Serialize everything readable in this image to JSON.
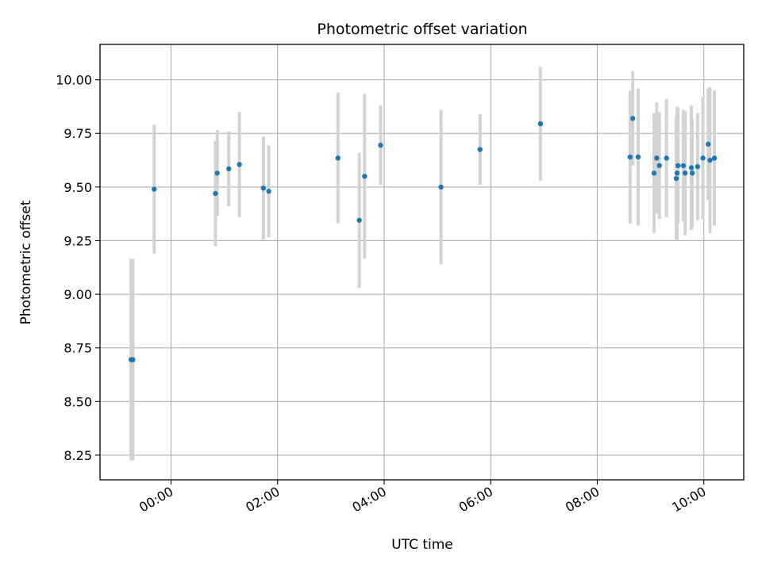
{
  "chart_data": {
    "type": "scatter",
    "title": "Photometric offset variation",
    "xlabel": "UTC time",
    "ylabel": "Photometric offset",
    "x_unit": "UTC time (HH:MM)",
    "xlim": [
      "-01:20",
      "10:45"
    ],
    "ylim": [
      8.135,
      10.165
    ],
    "grid": true,
    "x_tick_labels": [
      "00:00",
      "02:00",
      "04:00",
      "06:00",
      "08:00",
      "10:00"
    ],
    "y_ticks": [
      8.25,
      8.5,
      8.75,
      9.0,
      9.25,
      9.5,
      9.75,
      10.0
    ],
    "y_tick_labels": [
      "8.25",
      "8.50",
      "8.75",
      "9.00",
      "9.25",
      "9.50",
      "9.75",
      "10.00"
    ],
    "series": [
      {
        "marker_color": "#1f77b4",
        "error_bar_color": "#d3d3d3",
        "points": [
          {
            "x": "-00:45",
            "y": 8.695,
            "yerr": 0.47
          },
          {
            "x": "-00:43",
            "y": 8.695,
            "yerr": 0.47
          },
          {
            "x": "-00:19",
            "y": 9.49,
            "yerr": 0.3
          },
          {
            "x": "00:50",
            "y": 9.47,
            "yerr": 0.245
          },
          {
            "x": "00:52",
            "y": 9.565,
            "yerr": 0.2
          },
          {
            "x": "01:05",
            "y": 9.585,
            "yerr": 0.175
          },
          {
            "x": "01:17",
            "y": 9.605,
            "yerr": 0.245
          },
          {
            "x": "01:44",
            "y": 9.495,
            "yerr": 0.24
          },
          {
            "x": "01:50",
            "y": 9.48,
            "yerr": 0.215
          },
          {
            "x": "03:08",
            "y": 9.635,
            "yerr": 0.305
          },
          {
            "x": "03:32",
            "y": 9.345,
            "yerr": 0.315
          },
          {
            "x": "03:38",
            "y": 9.55,
            "yerr": 0.385
          },
          {
            "x": "03:56",
            "y": 9.695,
            "yerr": 0.185
          },
          {
            "x": "05:04",
            "y": 9.5,
            "yerr": 0.36
          },
          {
            "x": "05:48",
            "y": 9.675,
            "yerr": 0.165
          },
          {
            "x": "06:56",
            "y": 9.795,
            "yerr": 0.265
          },
          {
            "x": "08:37",
            "y": 9.64,
            "yerr": 0.31
          },
          {
            "x": "08:40",
            "y": 9.82,
            "yerr": 0.22
          },
          {
            "x": "08:46",
            "y": 9.64,
            "yerr": 0.32
          },
          {
            "x": "09:04",
            "y": 9.565,
            "yerr": 0.28
          },
          {
            "x": "09:07",
            "y": 9.635,
            "yerr": 0.26
          },
          {
            "x": "09:10",
            "y": 9.6,
            "yerr": 0.25
          },
          {
            "x": "09:18",
            "y": 9.635,
            "yerr": 0.275
          },
          {
            "x": "09:29",
            "y": 9.54,
            "yerr": 0.29
          },
          {
            "x": "09:30",
            "y": 9.565,
            "yerr": 0.31
          },
          {
            "x": "09:31",
            "y": 9.6,
            "yerr": 0.27
          },
          {
            "x": "09:37",
            "y": 9.6,
            "yerr": 0.26
          },
          {
            "x": "09:39",
            "y": 9.565,
            "yerr": 0.29
          },
          {
            "x": "09:46",
            "y": 9.59,
            "yerr": 0.29
          },
          {
            "x": "09:47",
            "y": 9.565,
            "yerr": 0.25
          },
          {
            "x": "09:53",
            "y": 9.595,
            "yerr": 0.25
          },
          {
            "x": "09:59",
            "y": 9.635,
            "yerr": 0.285
          },
          {
            "x": "10:05",
            "y": 9.7,
            "yerr": 0.26
          },
          {
            "x": "10:07",
            "y": 9.625,
            "yerr": 0.34
          },
          {
            "x": "10:12",
            "y": 9.635,
            "yerr": 0.315
          }
        ]
      }
    ]
  }
}
